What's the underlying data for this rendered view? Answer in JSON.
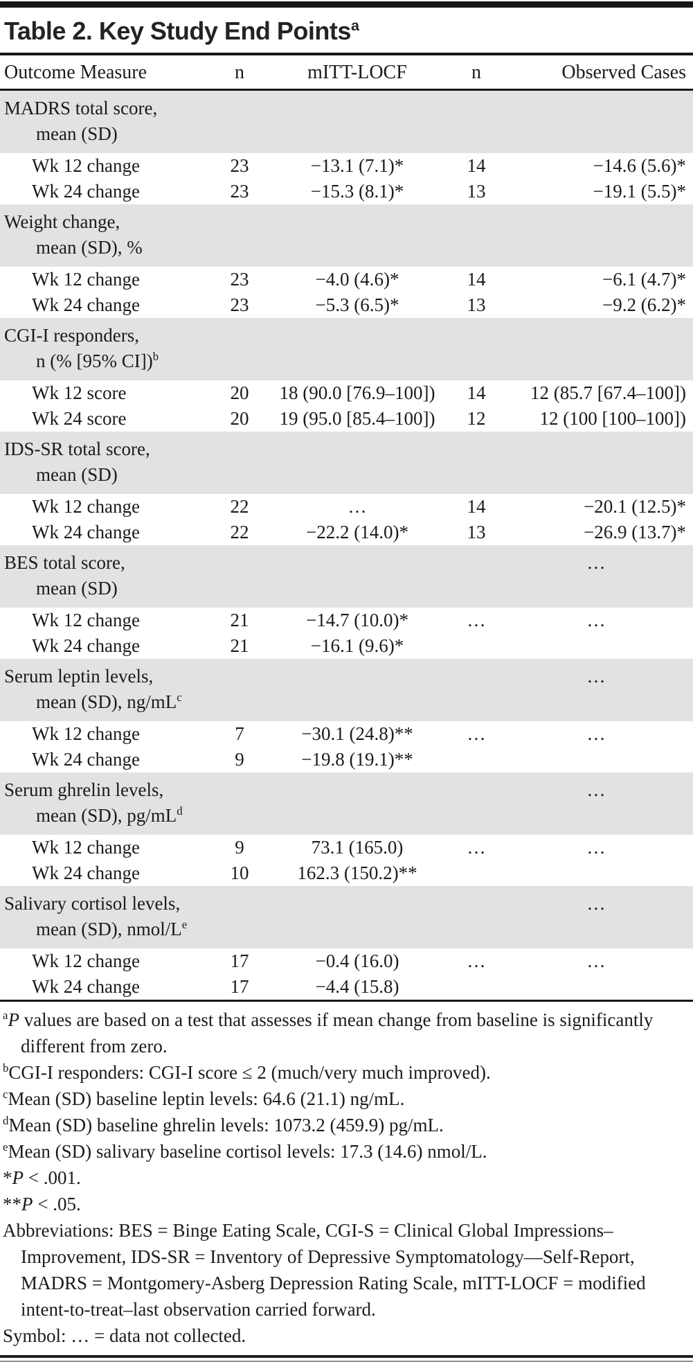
{
  "title": {
    "text": "Table 2. Key Study End Points",
    "sup": "a"
  },
  "columns": {
    "outcome": "Outcome Measure",
    "n1": "n",
    "mitt": "mITT-LOCF",
    "n2": "n",
    "observed": "Observed Cases"
  },
  "colors": {
    "section_bg": "#e2e2e2",
    "rule": "#161616",
    "text": "#1b1b1b"
  },
  "table": {
    "rows": [
      {
        "type": "section",
        "line1": "MADRS total score,",
        "line2": "mean (SD)",
        "sup": "",
        "observed": ""
      },
      {
        "type": "data",
        "label": "Wk 12 change",
        "n1": "23",
        "mitt": "−13.1 (7.1)*",
        "n2": "14",
        "observed": "−14.6 (5.6)*"
      },
      {
        "type": "data",
        "label": "Wk 24 change",
        "n1": "23",
        "mitt": "−15.3 (8.1)*",
        "n2": "13",
        "observed": "−19.1 (5.5)*"
      },
      {
        "type": "section",
        "line1": "Weight change,",
        "line2": "mean (SD), %",
        "sup": "",
        "observed": ""
      },
      {
        "type": "data",
        "label": "Wk 12 change",
        "n1": "23",
        "mitt": "−4.0 (4.6)*",
        "n2": "14",
        "observed": "−6.1 (4.7)*"
      },
      {
        "type": "data",
        "label": "Wk 24 change",
        "n1": "23",
        "mitt": "−5.3 (6.5)*",
        "n2": "13",
        "observed": "−9.2 (6.2)*"
      },
      {
        "type": "section",
        "line1": "CGI-I responders,",
        "line2": "n (% [95% CI])",
        "sup": "b",
        "observed": ""
      },
      {
        "type": "data",
        "label": "Wk 12 score",
        "n1": "20",
        "mitt": "18 (90.0 [76.9–100])",
        "n2": "14",
        "observed": "12 (85.7 [67.4–100])"
      },
      {
        "type": "data",
        "label": "Wk 24 score",
        "n1": "20",
        "mitt": "19 (95.0 [85.4–100])",
        "n2": "12",
        "observed": "12 (100 [100–100])"
      },
      {
        "type": "section",
        "line1": "IDS-SR total score,",
        "line2": "mean (SD)",
        "sup": "",
        "observed": ""
      },
      {
        "type": "data",
        "label": "Wk 12 change",
        "n1": "22",
        "mitt": "…",
        "n2": "14",
        "observed": "−20.1 (12.5)*"
      },
      {
        "type": "data",
        "label": "Wk 24 change",
        "n1": "22",
        "mitt": "−22.2 (14.0)*",
        "n2": "13",
        "observed": "−26.9 (13.7)*"
      },
      {
        "type": "section",
        "line1": "BES total score,",
        "line2": "mean (SD)",
        "sup": "",
        "observed": "…"
      },
      {
        "type": "data",
        "label": "Wk 12 change",
        "n1": "21",
        "mitt": "−14.7 (10.0)*",
        "n2": "…",
        "observed": "…"
      },
      {
        "type": "data",
        "label": "Wk 24 change",
        "n1": "21",
        "mitt": "−16.1 (9.6)*",
        "n2": "",
        "observed": ""
      },
      {
        "type": "section",
        "line1": "Serum leptin levels,",
        "line2": "mean (SD), ng/mL",
        "sup": "c",
        "observed": "…"
      },
      {
        "type": "data",
        "label": "Wk 12 change",
        "n1": "7",
        "mitt": "−30.1 (24.8)**",
        "n2": "…",
        "observed": "…"
      },
      {
        "type": "data",
        "label": "Wk 24 change",
        "n1": "9",
        "mitt": "−19.8 (19.1)**",
        "n2": "",
        "observed": ""
      },
      {
        "type": "section",
        "line1": "Serum ghrelin levels,",
        "line2": "mean (SD), pg/mL",
        "sup": "d",
        "observed": "…"
      },
      {
        "type": "data",
        "label": "Wk 12 change",
        "n1": "9",
        "mitt": "73.1 (165.0)",
        "n2": "…",
        "observed": "…"
      },
      {
        "type": "data",
        "label": "Wk 24 change",
        "n1": "10",
        "mitt": "162.3 (150.2)**",
        "n2": "",
        "observed": ""
      },
      {
        "type": "section",
        "line1": "Salivary cortisol levels,",
        "line2": "mean (SD), nmol/L",
        "sup": "e",
        "observed": "…"
      },
      {
        "type": "data",
        "label": "Wk 12 change",
        "n1": "17",
        "mitt": "−0.4 (16.0)",
        "n2": "…",
        "observed": "…"
      },
      {
        "type": "data",
        "label": "Wk 24 change",
        "n1": "17",
        "mitt": "−4.4 (15.8)",
        "n2": "",
        "observed": ""
      }
    ]
  },
  "footnotes": [
    [
      {
        "s": "sup",
        "t": "a"
      },
      {
        "s": "i",
        "t": "P"
      },
      {
        "s": "",
        "t": " values are based on a test that assesses if mean change from baseline is significantly different from zero."
      }
    ],
    [
      {
        "s": "sup",
        "t": "b"
      },
      {
        "s": "",
        "t": "CGI-I responders: CGI-I score ≤ 2 (much/very much improved)."
      }
    ],
    [
      {
        "s": "sup",
        "t": "c"
      },
      {
        "s": "",
        "t": "Mean (SD) baseline leptin levels: 64.6 (21.1) ng/mL."
      }
    ],
    [
      {
        "s": "sup",
        "t": "d"
      },
      {
        "s": "",
        "t": "Mean (SD) baseline ghrelin levels: 1073.2 (459.9) pg/mL."
      }
    ],
    [
      {
        "s": "sup",
        "t": "e"
      },
      {
        "s": "",
        "t": "Mean (SD) salivary baseline cortisol levels: 17.3 (14.6) nmol/L."
      }
    ],
    [
      {
        "s": "",
        "t": "*"
      },
      {
        "s": "i",
        "t": "P"
      },
      {
        "s": "",
        "t": " < .001."
      }
    ],
    [
      {
        "s": "",
        "t": "**"
      },
      {
        "s": "i",
        "t": "P"
      },
      {
        "s": "",
        "t": " < .05."
      }
    ],
    [
      {
        "s": "",
        "t": "Abbreviations: BES = Binge Eating Scale, CGI-S = Clinical Global Impressions–Improvement, IDS-SR = Inventory of Depressive Symptomatology—Self-Report, MADRS = Montgomery-Asberg Depression Rating Scale, mITT-LOCF = modified intent-to-treat–last observation carried forward."
      }
    ],
    [
      {
        "s": "",
        "t": "Symbol: … = data not collected."
      }
    ]
  ]
}
